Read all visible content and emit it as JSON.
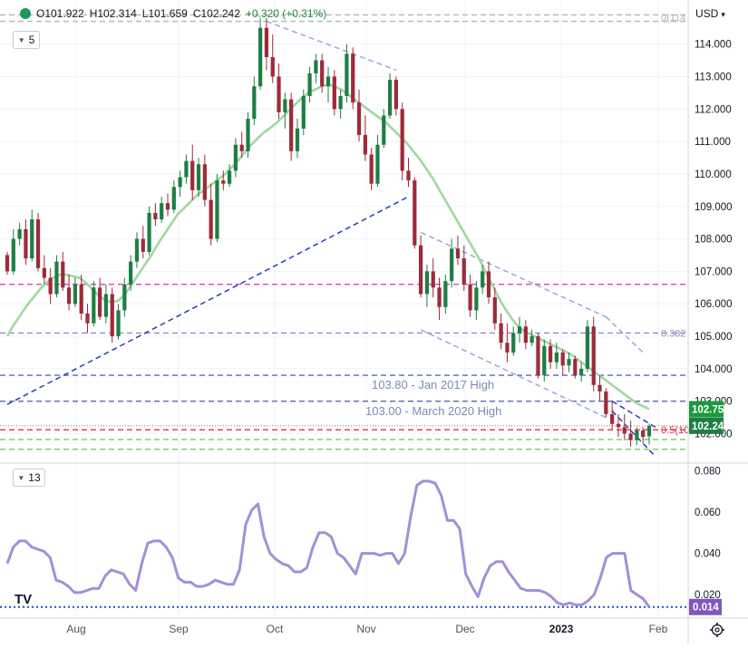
{
  "header": {
    "ohlc": {
      "open": "O101.922",
      "high": "H102.314",
      "low": "L101.659",
      "close": "C102.242",
      "change": "+0.320 (+0.31%)"
    },
    "currency": "USD",
    "currency_caret": "▾",
    "main_pane_tag": "5",
    "indicator_pane_tag": "13",
    "brand": "TV"
  },
  "chart_data": [
    {
      "type": "candlestick",
      "pane": "price",
      "axis": {
        "ticks": [
          "114.000",
          "113.000",
          "112.000",
          "111.000",
          "110.000",
          "109.000",
          "108.000",
          "107.000",
          "106.000",
          "105.000",
          "104.000",
          "103.000",
          "102.000"
        ],
        "ylim": [
          101.4,
          114.8
        ]
      },
      "x_labels": [
        "Aug",
        "Sep",
        "Oct",
        "Nov",
        "Dec",
        "2023",
        "Feb"
      ],
      "price_labels": {
        "ma": "102.754",
        "last": "102.242"
      },
      "annotations": {
        "jan2017": "103.80 - Jan 2017 High",
        "mar2020": "103.00 - March 2020 High",
        "fib0": "0(114",
        "fib382": "0.382",
        "fib5": "0.5(10"
      },
      "levels": [
        {
          "value": 114.9,
          "color": "#b2b5be",
          "dash": true
        },
        {
          "value": 114.7,
          "color": "#b2b5be",
          "dash": true
        },
        {
          "value": 106.6,
          "color": "#e040c0",
          "dash": true
        },
        {
          "value": 105.1,
          "color": "#9e86c8",
          "dash": true
        },
        {
          "value": 103.8,
          "color": "#5b6aa8",
          "dash": true
        },
        {
          "value": 103.0,
          "color": "#5b6aa8",
          "dash": true
        },
        {
          "value": 102.12,
          "color": "#e0304a",
          "dash": true
        },
        {
          "value": 101.82,
          "color": "#6bcf6b",
          "dash": true
        },
        {
          "value": 101.52,
          "color": "#6bcf6b",
          "dash": true
        }
      ],
      "candles": [
        [
          107.5,
          107.6,
          106.9,
          107.0
        ],
        [
          107.0,
          108.3,
          106.9,
          108.0
        ],
        [
          108.0,
          108.5,
          107.8,
          108.3
        ],
        [
          108.3,
          108.6,
          107.2,
          107.4
        ],
        [
          107.4,
          108.9,
          107.3,
          108.6
        ],
        [
          108.6,
          108.8,
          107.0,
          107.1
        ],
        [
          107.1,
          107.5,
          106.6,
          106.8
        ],
        [
          106.8,
          107.1,
          106.0,
          106.3
        ],
        [
          106.3,
          107.5,
          106.2,
          107.3
        ],
        [
          107.3,
          107.6,
          106.4,
          106.5
        ],
        [
          106.5,
          106.9,
          105.8,
          106.0
        ],
        [
          106.0,
          106.8,
          105.9,
          106.6
        ],
        [
          106.6,
          106.9,
          105.5,
          105.7
        ],
        [
          105.7,
          106.0,
          105.1,
          105.4
        ],
        [
          105.4,
          106.7,
          105.3,
          106.5
        ],
        [
          106.5,
          106.8,
          105.5,
          105.6
        ],
        [
          105.6,
          106.6,
          105.4,
          106.3
        ],
        [
          106.3,
          106.5,
          104.8,
          105.0
        ],
        [
          105.0,
          106.0,
          104.9,
          105.8
        ],
        [
          105.8,
          106.8,
          105.6,
          106.6
        ],
        [
          106.6,
          107.5,
          106.4,
          107.3
        ],
        [
          107.3,
          108.2,
          107.1,
          108.0
        ],
        [
          108.0,
          108.4,
          107.4,
          107.6
        ],
        [
          107.6,
          109.0,
          107.5,
          108.8
        ],
        [
          108.8,
          109.1,
          108.4,
          108.6
        ],
        [
          108.6,
          109.3,
          108.5,
          109.1
        ],
        [
          109.1,
          109.4,
          108.7,
          108.9
        ],
        [
          108.9,
          109.8,
          108.8,
          109.6
        ],
        [
          109.6,
          110.1,
          109.3,
          109.9
        ],
        [
          109.9,
          110.6,
          109.7,
          110.4
        ],
        [
          110.4,
          110.9,
          109.2,
          109.5
        ],
        [
          109.5,
          110.5,
          109.3,
          110.3
        ],
        [
          110.3,
          110.6,
          109.0,
          109.2
        ],
        [
          109.2,
          109.7,
          107.8,
          108.0
        ],
        [
          108.0,
          110.0,
          107.9,
          109.8
        ],
        [
          109.8,
          110.1,
          109.5,
          109.7
        ],
        [
          109.7,
          110.3,
          109.6,
          110.1
        ],
        [
          110.1,
          111.1,
          109.9,
          110.9
        ],
        [
          110.9,
          111.3,
          110.5,
          110.7
        ],
        [
          110.7,
          111.9,
          110.5,
          111.7
        ],
        [
          111.7,
          113.0,
          111.5,
          112.7
        ],
        [
          112.7,
          114.8,
          112.6,
          114.5
        ],
        [
          114.5,
          114.8,
          113.2,
          113.6
        ],
        [
          113.6,
          114.3,
          112.8,
          113.0
        ],
        [
          113.0,
          113.4,
          111.7,
          111.9
        ],
        [
          111.9,
          112.5,
          111.4,
          112.3
        ],
        [
          112.3,
          112.5,
          110.4,
          110.7
        ],
        [
          110.7,
          111.7,
          110.5,
          111.4
        ],
        [
          111.4,
          112.6,
          111.2,
          112.4
        ],
        [
          112.4,
          113.3,
          112.2,
          113.1
        ],
        [
          113.1,
          113.7,
          112.8,
          113.5
        ],
        [
          113.5,
          113.7,
          112.5,
          112.7
        ],
        [
          112.7,
          113.3,
          112.2,
          113.0
        ],
        [
          113.0,
          113.2,
          111.8,
          112.0
        ],
        [
          112.0,
          112.6,
          111.7,
          112.4
        ],
        [
          112.4,
          114.0,
          112.2,
          113.7
        ],
        [
          113.7,
          113.9,
          112.0,
          112.2
        ],
        [
          112.2,
          112.6,
          111.0,
          111.2
        ],
        [
          111.2,
          111.8,
          110.4,
          110.6
        ],
        [
          110.6,
          110.8,
          109.5,
          109.7
        ],
        [
          109.7,
          111.2,
          109.6,
          110.9
        ],
        [
          110.9,
          112.0,
          110.8,
          111.8
        ],
        [
          111.8,
          113.1,
          111.7,
          112.9
        ],
        [
          112.9,
          113.0,
          111.8,
          112.0
        ],
        [
          112.0,
          112.2,
          109.8,
          110.1
        ],
        [
          110.1,
          110.5,
          109.6,
          109.8
        ],
        [
          109.8,
          109.9,
          107.7,
          107.8
        ],
        [
          107.8,
          108.1,
          106.2,
          106.3
        ],
        [
          106.3,
          107.2,
          105.9,
          107.0
        ],
        [
          107.0,
          107.4,
          106.2,
          106.5
        ],
        [
          106.5,
          106.8,
          105.5,
          105.9
        ],
        [
          105.9,
          106.9,
          105.7,
          106.7
        ],
        [
          106.7,
          108.0,
          106.5,
          107.7
        ],
        [
          107.7,
          108.1,
          107.2,
          107.4
        ],
        [
          107.4,
          107.8,
          106.4,
          106.6
        ],
        [
          106.6,
          106.9,
          105.6,
          105.8
        ],
        [
          105.8,
          106.7,
          105.5,
          106.5
        ],
        [
          106.5,
          107.2,
          106.3,
          107.0
        ],
        [
          107.0,
          107.3,
          106.0,
          106.2
        ],
        [
          106.2,
          106.5,
          105.2,
          105.4
        ],
        [
          105.4,
          105.7,
          104.6,
          104.8
        ],
        [
          104.8,
          105.4,
          104.2,
          104.5
        ],
        [
          104.5,
          105.3,
          104.4,
          105.1
        ],
        [
          105.1,
          105.6,
          104.8,
          105.3
        ],
        [
          105.3,
          105.5,
          104.6,
          104.8
        ],
        [
          104.8,
          105.2,
          104.7,
          105.0
        ],
        [
          105.0,
          105.1,
          103.7,
          103.8
        ],
        [
          103.8,
          104.9,
          103.6,
          104.7
        ],
        [
          104.7,
          104.9,
          104.0,
          104.2
        ],
        [
          104.2,
          104.8,
          104.0,
          104.5
        ],
        [
          104.5,
          104.6,
          103.8,
          104.1
        ],
        [
          104.1,
          104.5,
          103.9,
          104.3
        ],
        [
          104.3,
          104.4,
          103.7,
          103.8
        ],
        [
          103.8,
          104.2,
          103.6,
          104.0
        ],
        [
          104.0,
          105.5,
          103.9,
          105.3
        ],
        [
          105.3,
          105.6,
          103.3,
          103.5
        ],
        [
          103.5,
          103.8,
          103.0,
          103.3
        ],
        [
          103.3,
          103.4,
          102.5,
          102.6
        ],
        [
          102.6,
          103.0,
          102.1,
          102.3
        ],
        [
          102.3,
          102.6,
          101.9,
          102.2
        ],
        [
          102.2,
          102.6,
          101.8,
          102.0
        ],
        [
          102.0,
          102.4,
          101.6,
          101.8
        ],
        [
          101.8,
          102.2,
          101.65,
          102.1
        ],
        [
          102.1,
          102.2,
          101.7,
          101.9
        ],
        [
          101.92,
          102.31,
          101.66,
          102.24
        ]
      ],
      "moving_average": [
        105.0,
        105.35,
        105.65,
        105.95,
        106.2,
        106.45,
        106.65,
        106.8,
        106.9,
        106.9,
        106.85,
        106.8,
        106.65,
        106.45,
        106.25,
        106.1,
        106.05,
        106.1,
        106.3,
        106.6,
        106.9,
        107.2,
        107.5,
        107.85,
        108.15,
        108.45,
        108.75,
        108.95,
        109.15,
        109.35,
        109.5,
        109.65,
        109.8,
        109.95,
        110.15,
        110.35,
        110.6,
        110.85,
        111.05,
        111.25,
        111.4,
        111.55,
        111.75,
        111.95,
        112.15,
        112.35,
        112.5,
        112.6,
        112.7,
        112.75,
        112.7,
        112.6,
        112.45,
        112.3,
        112.15,
        112.0,
        111.85,
        111.7,
        111.55,
        111.35,
        111.15,
        110.95,
        110.7,
        110.45,
        110.15,
        109.85,
        109.5,
        109.15,
        108.8,
        108.45,
        108.1,
        107.75,
        107.4,
        107.0,
        106.6,
        106.2,
        105.85,
        105.55,
        105.3,
        105.15,
        105.05,
        104.95,
        104.85,
        104.75,
        104.65,
        104.55,
        104.45,
        104.3,
        104.15,
        104.0,
        103.85,
        103.7,
        103.55,
        103.4,
        103.25,
        103.1,
        102.95,
        102.85,
        102.754
      ],
      "trendlines": [
        {
          "from": [
            0,
            102.9
          ],
          "to": [
            65,
            109.3
          ],
          "color": "#2a3eb1",
          "dash": true
        },
        {
          "from": [
            42,
            114.7
          ],
          "to": [
            63,
            113.2
          ],
          "color": "#9fa6de",
          "dash": true
        },
        {
          "from": [
            67,
            108.2
          ],
          "to": [
            97,
            105.6
          ],
          "color": "#9fa6de",
          "dash": true
        },
        {
          "from": [
            67,
            105.2
          ],
          "to": [
            97,
            102.5
          ],
          "color": "#9fa6de",
          "dash": true
        },
        {
          "from": [
            97,
            105.6
          ],
          "to": [
            103,
            104.5
          ],
          "color": "#9fa6de",
          "dash": true
        },
        {
          "from": [
            98,
            102.7
          ],
          "to": [
            105,
            101.3
          ],
          "color": "#2a3eb1",
          "dash": true
        },
        {
          "from": [
            98,
            103.0
          ],
          "to": [
            105,
            102.2
          ],
          "color": "#2a3eb1",
          "dash": true
        }
      ]
    },
    {
      "type": "line",
      "pane": "indicator",
      "axis": {
        "ticks": [
          "0.080",
          "0.060",
          "0.040",
          "0.020"
        ],
        "ylim": [
          0.013,
          0.082
        ]
      },
      "last_label": "0.014",
      "baseline": 0.014,
      "values": [
        0.035,
        0.043,
        0.046,
        0.046,
        0.043,
        0.042,
        0.041,
        0.038,
        0.027,
        0.026,
        0.024,
        0.021,
        0.021,
        0.022,
        0.023,
        0.023,
        0.029,
        0.032,
        0.031,
        0.03,
        0.025,
        0.022,
        0.035,
        0.045,
        0.046,
        0.046,
        0.043,
        0.038,
        0.028,
        0.026,
        0.026,
        0.024,
        0.024,
        0.025,
        0.027,
        0.026,
        0.025,
        0.025,
        0.032,
        0.054,
        0.061,
        0.064,
        0.048,
        0.04,
        0.037,
        0.035,
        0.034,
        0.031,
        0.031,
        0.033,
        0.043,
        0.05,
        0.05,
        0.048,
        0.04,
        0.038,
        0.034,
        0.03,
        0.04,
        0.04,
        0.04,
        0.039,
        0.04,
        0.04,
        0.035,
        0.04,
        0.058,
        0.073,
        0.075,
        0.075,
        0.074,
        0.068,
        0.056,
        0.056,
        0.052,
        0.03,
        0.024,
        0.019,
        0.028,
        0.034,
        0.036,
        0.036,
        0.031,
        0.027,
        0.023,
        0.022,
        0.022,
        0.022,
        0.021,
        0.019,
        0.016,
        0.015,
        0.016,
        0.015,
        0.015,
        0.017,
        0.02,
        0.028,
        0.038,
        0.04,
        0.04,
        0.04,
        0.022,
        0.02,
        0.018,
        0.014
      ]
    }
  ]
}
